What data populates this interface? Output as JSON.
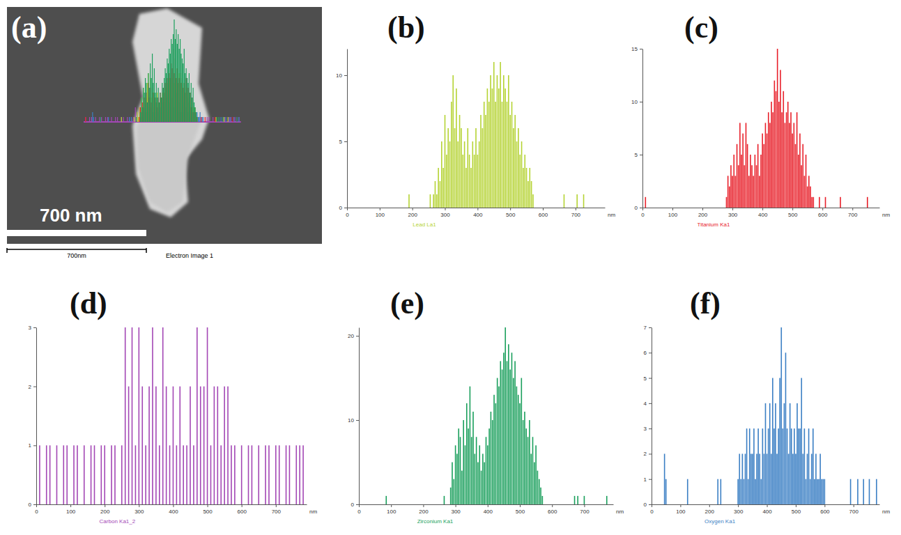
{
  "image_panel": {
    "label": "(a)",
    "scale_bar_text": "700 nm",
    "scale_bar_nm": 700,
    "scale_caption": "700nm",
    "caption": "Electron Image 1"
  },
  "chart_data": [
    {
      "type": "bar",
      "panel": "(b)",
      "title": "Lead La1",
      "xlabel": "nm",
      "color": "#b5d334",
      "x": [
        190,
        255,
        265,
        270,
        275,
        280,
        285,
        290,
        295,
        300,
        305,
        310,
        315,
        320,
        325,
        330,
        335,
        340,
        345,
        350,
        355,
        360,
        365,
        370,
        375,
        380,
        385,
        390,
        395,
        400,
        405,
        410,
        415,
        420,
        425,
        430,
        435,
        440,
        445,
        450,
        455,
        460,
        465,
        470,
        475,
        480,
        485,
        490,
        495,
        500,
        505,
        510,
        515,
        520,
        525,
        530,
        535,
        540,
        545,
        550,
        555,
        560,
        565,
        570,
        665,
        705,
        725
      ],
      "values": [
        1,
        1,
        1,
        2,
        1,
        3,
        2,
        5,
        3,
        7,
        4,
        6,
        5,
        8,
        10,
        6,
        9,
        5,
        7,
        6,
        4,
        5,
        3,
        6,
        4,
        3,
        5,
        4,
        6,
        4,
        5,
        7,
        6,
        8,
        7,
        9,
        8,
        10,
        9,
        11,
        8,
        10,
        9,
        11,
        8,
        10,
        9,
        8,
        10,
        7,
        8,
        6,
        7,
        5,
        6,
        4,
        5,
        3,
        4,
        3,
        2,
        3,
        2,
        1,
        1,
        1,
        1
      ],
      "xlim": [
        0,
        790
      ],
      "xticks": [
        0,
        100,
        200,
        300,
        400,
        500,
        600,
        700
      ],
      "ylim": [
        0,
        12
      ],
      "yticks": [
        0,
        5,
        10
      ]
    },
    {
      "type": "bar",
      "panel": "(c)",
      "title": "Titanium Ka1",
      "xlabel": "nm",
      "color": "#e8202a",
      "x": [
        10,
        280,
        285,
        290,
        295,
        300,
        305,
        310,
        315,
        320,
        325,
        330,
        335,
        340,
        345,
        350,
        355,
        360,
        365,
        370,
        375,
        380,
        385,
        390,
        395,
        400,
        405,
        410,
        415,
        420,
        425,
        430,
        435,
        440,
        445,
        450,
        455,
        460,
        465,
        470,
        475,
        480,
        485,
        490,
        495,
        500,
        505,
        510,
        515,
        520,
        525,
        530,
        535,
        540,
        545,
        550,
        555,
        560,
        565,
        570,
        590,
        610,
        660,
        750
      ],
      "values": [
        1,
        1,
        3,
        2,
        4,
        3,
        5,
        3,
        6,
        4,
        8,
        5,
        7,
        4,
        8,
        6,
        3,
        5,
        4,
        3,
        5,
        4,
        6,
        3,
        5,
        7,
        6,
        8,
        7,
        9,
        8,
        10,
        9,
        12,
        11,
        15,
        10,
        13,
        9,
        11,
        8,
        9,
        10,
        8,
        9,
        7,
        8,
        6,
        9,
        5,
        7,
        4,
        6,
        3,
        5,
        2,
        3,
        2,
        1,
        1,
        1,
        1,
        1,
        1
      ],
      "xlim": [
        0,
        790
      ],
      "xticks": [
        0,
        100,
        200,
        300,
        400,
        500,
        600,
        700
      ],
      "ylim": [
        0,
        15
      ],
      "yticks": [
        0,
        5,
        10,
        15
      ]
    },
    {
      "type": "bar",
      "panel": "(d)",
      "title": "Carbon Ka1_2",
      "xlabel": "nm",
      "color": "#a347b5",
      "x": [
        10,
        20,
        30,
        40,
        50,
        60,
        70,
        80,
        90,
        100,
        110,
        120,
        130,
        140,
        150,
        160,
        170,
        180,
        190,
        200,
        210,
        220,
        230,
        240,
        250,
        260,
        270,
        280,
        290,
        300,
        310,
        320,
        330,
        340,
        350,
        360,
        370,
        380,
        390,
        400,
        410,
        420,
        430,
        440,
        450,
        460,
        470,
        480,
        490,
        500,
        510,
        520,
        530,
        540,
        550,
        560,
        570,
        580,
        590,
        600,
        610,
        620,
        630,
        640,
        650,
        660,
        670,
        680,
        690,
        700,
        710,
        720,
        730,
        740,
        750,
        760,
        770,
        780
      ],
      "values": [
        1,
        0,
        1,
        1,
        0,
        1,
        0,
        1,
        1,
        0,
        1,
        1,
        0,
        1,
        0,
        1,
        1,
        0,
        1,
        1,
        0,
        1,
        1,
        0,
        1,
        3,
        2,
        3,
        1,
        3,
        2,
        1,
        2,
        3,
        2,
        1,
        3,
        2,
        1,
        2,
        1,
        2,
        1,
        1,
        2,
        1,
        3,
        2,
        2,
        3,
        1,
        2,
        2,
        1,
        2,
        2,
        1,
        1,
        0,
        1,
        0,
        1,
        1,
        0,
        1,
        0,
        1,
        1,
        0,
        1,
        1,
        0,
        1,
        1,
        0,
        1,
        1,
        1
      ],
      "xlim": [
        0,
        790
      ],
      "xticks": [
        0,
        100,
        200,
        300,
        400,
        500,
        600,
        700
      ],
      "ylim": [
        0,
        3
      ],
      "yticks": [
        0,
        1,
        2,
        3
      ]
    },
    {
      "type": "bar",
      "panel": "(e)",
      "title": "Zirconium Ka1",
      "xlabel": "nm",
      "color": "#1a9f5c",
      "x": [
        85,
        265,
        285,
        290,
        295,
        300,
        305,
        310,
        315,
        320,
        325,
        330,
        335,
        340,
        345,
        350,
        355,
        360,
        365,
        370,
        375,
        380,
        385,
        390,
        395,
        400,
        405,
        410,
        415,
        420,
        425,
        430,
        435,
        440,
        445,
        450,
        455,
        460,
        465,
        470,
        475,
        480,
        485,
        490,
        495,
        500,
        505,
        510,
        515,
        520,
        525,
        530,
        535,
        540,
        545,
        550,
        555,
        560,
        565,
        570,
        670,
        680,
        700,
        770
      ],
      "values": [
        1,
        1,
        2,
        5,
        3,
        7,
        6,
        9,
        8,
        4,
        10,
        7,
        12,
        9,
        14,
        8,
        11,
        6,
        8,
        5,
        7,
        4,
        6,
        5,
        8,
        7,
        9,
        11,
        10,
        13,
        12,
        15,
        14,
        17,
        16,
        18,
        21,
        17,
        19,
        16,
        18,
        15,
        17,
        14,
        13,
        12,
        15,
        10,
        11,
        9,
        8,
        10,
        6,
        8,
        5,
        7,
        4,
        3,
        2,
        1,
        1,
        1,
        1,
        1
      ],
      "xlim": [
        0,
        790
      ],
      "xticks": [
        0,
        100,
        200,
        300,
        400,
        500,
        600,
        700
      ],
      "ylim": [
        0,
        21
      ],
      "yticks": [
        0,
        10,
        20
      ]
    },
    {
      "type": "bar",
      "panel": "(f)",
      "title": "Oxygen Ka1",
      "xlabel": "nm",
      "color": "#3b7fc4",
      "x": [
        45,
        50,
        125,
        230,
        240,
        300,
        305,
        310,
        315,
        320,
        325,
        330,
        335,
        340,
        345,
        350,
        355,
        360,
        365,
        370,
        375,
        380,
        385,
        390,
        395,
        400,
        405,
        410,
        415,
        420,
        425,
        430,
        435,
        440,
        445,
        450,
        455,
        460,
        465,
        470,
        475,
        480,
        485,
        490,
        495,
        500,
        505,
        510,
        515,
        520,
        525,
        530,
        535,
        540,
        545,
        550,
        555,
        560,
        565,
        570,
        575,
        580,
        585,
        590,
        595,
        600,
        690,
        715,
        735,
        755,
        780
      ],
      "values": [
        2,
        1,
        1,
        1,
        1,
        1,
        2,
        1,
        2,
        1,
        2,
        3,
        1,
        3,
        2,
        2,
        3,
        1,
        2,
        3,
        2,
        1,
        3,
        2,
        4,
        2,
        3,
        4,
        2,
        5,
        3,
        4,
        2,
        3,
        5,
        7,
        3,
        4,
        6,
        3,
        2,
        4,
        3,
        2,
        3,
        2,
        4,
        3,
        3,
        5,
        2,
        3,
        1,
        2,
        3,
        1,
        2,
        3,
        1,
        2,
        1,
        1,
        2,
        1,
        1,
        1,
        1,
        1,
        1,
        1,
        1
      ],
      "xlim": [
        0,
        790
      ],
      "xticks": [
        0,
        100,
        200,
        300,
        400,
        500,
        600,
        700
      ],
      "ylim": [
        0,
        7
      ],
      "yticks": [
        0,
        1,
        2,
        3,
        4,
        5,
        6,
        7
      ]
    }
  ]
}
